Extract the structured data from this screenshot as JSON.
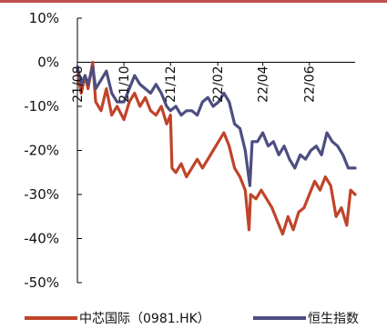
{
  "chart_data": {
    "type": "line",
    "y_unit": "%",
    "ylim": [
      -50,
      10
    ],
    "y_ticks": [
      10,
      0,
      -10,
      -20,
      -30,
      -40,
      -50
    ],
    "y_tick_labels": [
      "10%",
      "0%",
      "-10%",
      "-20%",
      "-30%",
      "-40%",
      "-50%"
    ],
    "x_range": [
      "2021-08-01",
      "2022-07-31"
    ],
    "x_tick_labels": [
      {
        "label": "21/08",
        "date": "2021-08-01"
      },
      {
        "label": "21/10",
        "date": "2021-10-01"
      },
      {
        "label": "21/12",
        "date": "2021-12-01"
      },
      {
        "label": "22/02",
        "date": "2022-02-01"
      },
      {
        "label": "22/04",
        "date": "2022-04-01"
      },
      {
        "label": "22/06",
        "date": "2022-06-01"
      }
    ],
    "grid": false,
    "legend_position": "bottom",
    "series": [
      {
        "name": "中芯国际（0981.HK）",
        "color": "#c0442a",
        "points": [
          [
            "2021-08-01",
            -2
          ],
          [
            "2021-08-06",
            -7
          ],
          [
            "2021-08-11",
            -3
          ],
          [
            "2021-08-15",
            -6
          ],
          [
            "2021-08-21",
            0
          ],
          [
            "2021-08-25",
            -9
          ],
          [
            "2021-09-01",
            -11
          ],
          [
            "2021-09-08",
            -6
          ],
          [
            "2021-09-15",
            -12
          ],
          [
            "2021-09-22",
            -10
          ],
          [
            "2021-10-01",
            -13
          ],
          [
            "2021-10-08",
            -9
          ],
          [
            "2021-10-15",
            -7
          ],
          [
            "2021-10-22",
            -10
          ],
          [
            "2021-10-29",
            -8
          ],
          [
            "2021-11-05",
            -11
          ],
          [
            "2021-11-12",
            -12
          ],
          [
            "2021-11-19",
            -10
          ],
          [
            "2021-11-26",
            -14
          ],
          [
            "2021-12-01",
            -12
          ],
          [
            "2021-12-03",
            -24
          ],
          [
            "2021-12-08",
            -25
          ],
          [
            "2021-12-15",
            -23
          ],
          [
            "2021-12-22",
            -26
          ],
          [
            "2021-12-29",
            -24
          ],
          [
            "2022-01-05",
            -22
          ],
          [
            "2022-01-12",
            -24
          ],
          [
            "2022-01-19",
            -22
          ],
          [
            "2022-01-26",
            -20
          ],
          [
            "2022-02-02",
            -18
          ],
          [
            "2022-02-09",
            -16
          ],
          [
            "2022-02-16",
            -19
          ],
          [
            "2022-02-23",
            -24
          ],
          [
            "2022-03-02",
            -26
          ],
          [
            "2022-03-09",
            -29
          ],
          [
            "2022-03-14",
            -38
          ],
          [
            "2022-03-16",
            -30
          ],
          [
            "2022-03-23",
            -31
          ],
          [
            "2022-03-30",
            -29
          ],
          [
            "2022-04-06",
            -31
          ],
          [
            "2022-04-13",
            -33
          ],
          [
            "2022-04-20",
            -36
          ],
          [
            "2022-04-27",
            -39
          ],
          [
            "2022-05-04",
            -35
          ],
          [
            "2022-05-11",
            -38
          ],
          [
            "2022-05-18",
            -34
          ],
          [
            "2022-05-25",
            -33
          ],
          [
            "2022-06-01",
            -30
          ],
          [
            "2022-06-08",
            -27
          ],
          [
            "2022-06-15",
            -29
          ],
          [
            "2022-06-22",
            -26
          ],
          [
            "2022-06-29",
            -28
          ],
          [
            "2022-07-06",
            -35
          ],
          [
            "2022-07-13",
            -33
          ],
          [
            "2022-07-20",
            -37
          ],
          [
            "2022-07-25",
            -29
          ],
          [
            "2022-07-31",
            -30
          ]
        ]
      },
      {
        "name": "恒生指数",
        "color": "#4d4e80",
        "points": [
          [
            "2021-08-01",
            -1
          ],
          [
            "2021-08-06",
            -5
          ],
          [
            "2021-08-11",
            -3
          ],
          [
            "2021-08-15",
            -5
          ],
          [
            "2021-08-21",
            -1
          ],
          [
            "2021-08-25",
            -6
          ],
          [
            "2021-09-01",
            -4
          ],
          [
            "2021-09-08",
            -2
          ],
          [
            "2021-09-15",
            -7
          ],
          [
            "2021-09-22",
            -9
          ],
          [
            "2021-10-01",
            -9
          ],
          [
            "2021-10-08",
            -6
          ],
          [
            "2021-10-15",
            -3
          ],
          [
            "2021-10-22",
            -5
          ],
          [
            "2021-10-29",
            -6
          ],
          [
            "2021-11-05",
            -7
          ],
          [
            "2021-11-12",
            -5
          ],
          [
            "2021-11-19",
            -7
          ],
          [
            "2021-11-26",
            -10
          ],
          [
            "2021-12-01",
            -11
          ],
          [
            "2021-12-08",
            -10
          ],
          [
            "2021-12-15",
            -12
          ],
          [
            "2021-12-22",
            -11
          ],
          [
            "2021-12-29",
            -11
          ],
          [
            "2022-01-05",
            -12
          ],
          [
            "2022-01-12",
            -9
          ],
          [
            "2022-01-19",
            -8
          ],
          [
            "2022-01-26",
            -10
          ],
          [
            "2022-02-02",
            -9
          ],
          [
            "2022-02-09",
            -7
          ],
          [
            "2022-02-16",
            -9
          ],
          [
            "2022-02-23",
            -14
          ],
          [
            "2022-03-02",
            -15
          ],
          [
            "2022-03-09",
            -20
          ],
          [
            "2022-03-15",
            -28
          ],
          [
            "2022-03-18",
            -18
          ],
          [
            "2022-03-25",
            -18
          ],
          [
            "2022-04-01",
            -16
          ],
          [
            "2022-04-08",
            -19
          ],
          [
            "2022-04-15",
            -18
          ],
          [
            "2022-04-22",
            -21
          ],
          [
            "2022-04-29",
            -19
          ],
          [
            "2022-05-06",
            -22
          ],
          [
            "2022-05-13",
            -24
          ],
          [
            "2022-05-20",
            -21
          ],
          [
            "2022-05-27",
            -22
          ],
          [
            "2022-06-03",
            -20
          ],
          [
            "2022-06-10",
            -19
          ],
          [
            "2022-06-17",
            -21
          ],
          [
            "2022-06-24",
            -16
          ],
          [
            "2022-07-01",
            -18
          ],
          [
            "2022-07-08",
            -19
          ],
          [
            "2022-07-15",
            -21
          ],
          [
            "2022-07-22",
            -24
          ],
          [
            "2022-07-31",
            -24
          ]
        ]
      }
    ]
  }
}
